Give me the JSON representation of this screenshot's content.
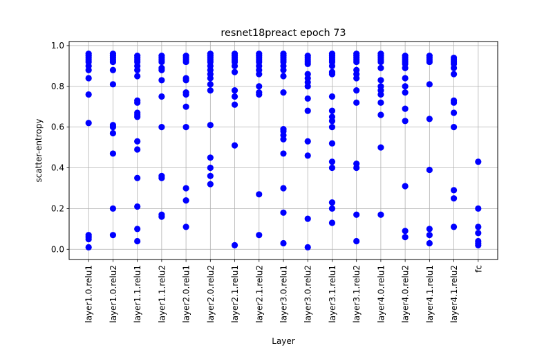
{
  "chart_data": {
    "type": "scatter",
    "title": "resnet18preact epoch 73",
    "xlabel": "Layer",
    "ylabel": "scatter-entropy",
    "categories": [
      "layer1.0.relu1",
      "layer1.0.relu2",
      "layer1.1.relu1",
      "layer1.1.relu2",
      "layer2.0.relu1",
      "layer2.0.relu2",
      "layer2.1.relu1",
      "layer2.1.relu2",
      "layer3.0.relu1",
      "layer3.0.relu2",
      "layer3.1.relu1",
      "layer3.1.relu2",
      "layer4.0.relu1",
      "layer4.0.relu2",
      "layer4.1.relu1",
      "layer4.1.relu2",
      "fc"
    ],
    "ylim": [
      -0.05,
      1.02
    ],
    "yticks": [
      "0.0",
      "0.2",
      "0.4",
      "0.6",
      "0.8",
      "1.0"
    ],
    "grid": true,
    "marker_color": "#0000ff",
    "points": [
      [
        0.96,
        0.95,
        0.94,
        0.93,
        0.92,
        0.9,
        0.88,
        0.84,
        0.76,
        0.62,
        0.07,
        0.06,
        0.05,
        0.01
      ],
      [
        0.96,
        0.95,
        0.94,
        0.93,
        0.92,
        0.88,
        0.81,
        0.61,
        0.6,
        0.57,
        0.47,
        0.2,
        0.07
      ],
      [
        0.95,
        0.94,
        0.93,
        0.92,
        0.9,
        0.88,
        0.85,
        0.73,
        0.72,
        0.67,
        0.66,
        0.65,
        0.53,
        0.49,
        0.35,
        0.21,
        0.1,
        0.04
      ],
      [
        0.95,
        0.94,
        0.93,
        0.92,
        0.89,
        0.88,
        0.83,
        0.75,
        0.6,
        0.36,
        0.35,
        0.17,
        0.16
      ],
      [
        0.95,
        0.94,
        0.93,
        0.92,
        0.84,
        0.83,
        0.77,
        0.76,
        0.7,
        0.6,
        0.3,
        0.24,
        0.11
      ],
      [
        0.96,
        0.95,
        0.94,
        0.93,
        0.92,
        0.9,
        0.88,
        0.86,
        0.84,
        0.81,
        0.78,
        0.61,
        0.45,
        0.4,
        0.36,
        0.32
      ],
      [
        0.96,
        0.95,
        0.94,
        0.93,
        0.92,
        0.9,
        0.87,
        0.78,
        0.75,
        0.71,
        0.51,
        0.02
      ],
      [
        0.96,
        0.95,
        0.94,
        0.93,
        0.92,
        0.9,
        0.88,
        0.86,
        0.8,
        0.77,
        0.76,
        0.27,
        0.07
      ],
      [
        0.96,
        0.95,
        0.94,
        0.93,
        0.92,
        0.9,
        0.88,
        0.85,
        0.77,
        0.59,
        0.58,
        0.56,
        0.54,
        0.47,
        0.3,
        0.18,
        0.03
      ],
      [
        0.95,
        0.94,
        0.93,
        0.92,
        0.91,
        0.86,
        0.84,
        0.82,
        0.8,
        0.74,
        0.68,
        0.53,
        0.46,
        0.15,
        0.01
      ],
      [
        0.96,
        0.95,
        0.94,
        0.93,
        0.92,
        0.9,
        0.87,
        0.86,
        0.75,
        0.68,
        0.65,
        0.63,
        0.6,
        0.52,
        0.43,
        0.4,
        0.23,
        0.2,
        0.13
      ],
      [
        0.96,
        0.95,
        0.94,
        0.93,
        0.92,
        0.88,
        0.86,
        0.84,
        0.78,
        0.72,
        0.42,
        0.4,
        0.17,
        0.04
      ],
      [
        0.96,
        0.95,
        0.94,
        0.93,
        0.92,
        0.89,
        0.83,
        0.8,
        0.78,
        0.76,
        0.72,
        0.66,
        0.5,
        0.17
      ],
      [
        0.95,
        0.94,
        0.93,
        0.92,
        0.91,
        0.89,
        0.84,
        0.8,
        0.77,
        0.69,
        0.63,
        0.31,
        0.09,
        0.06
      ],
      [
        0.95,
        0.94,
        0.93,
        0.92,
        0.81,
        0.64,
        0.39,
        0.1,
        0.07,
        0.03
      ],
      [
        0.94,
        0.93,
        0.92,
        0.91,
        0.89,
        0.86,
        0.73,
        0.72,
        0.67,
        0.6,
        0.29,
        0.25,
        0.11
      ],
      [
        0.43,
        0.2,
        0.11,
        0.08,
        0.04,
        0.03,
        0.02
      ]
    ]
  }
}
